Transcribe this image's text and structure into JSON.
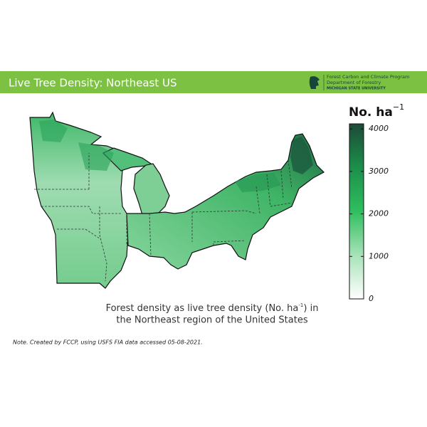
{
  "header": {
    "title": "Live Tree Density: Northeast US",
    "logo_lines": [
      "Forest Carbon and Climate Program",
      "Department of Forestry",
      "MICHIGAN STATE UNIVERSITY"
    ]
  },
  "colorbar": {
    "title": "No. ha",
    "title_sup": "−1",
    "lim": [
      0,
      4120
    ],
    "ticks": [
      0,
      1000,
      2000,
      3000,
      4000
    ]
  },
  "caption": {
    "line1_before": "Forest density as live tree density (No. ha",
    "line1_sup": "-1",
    "line1_after": ") in",
    "line2": "the Northeast region of the United States"
  },
  "note": "Note. Created by FCCP, using USFS FIA data accessed 05-08-2021."
}
